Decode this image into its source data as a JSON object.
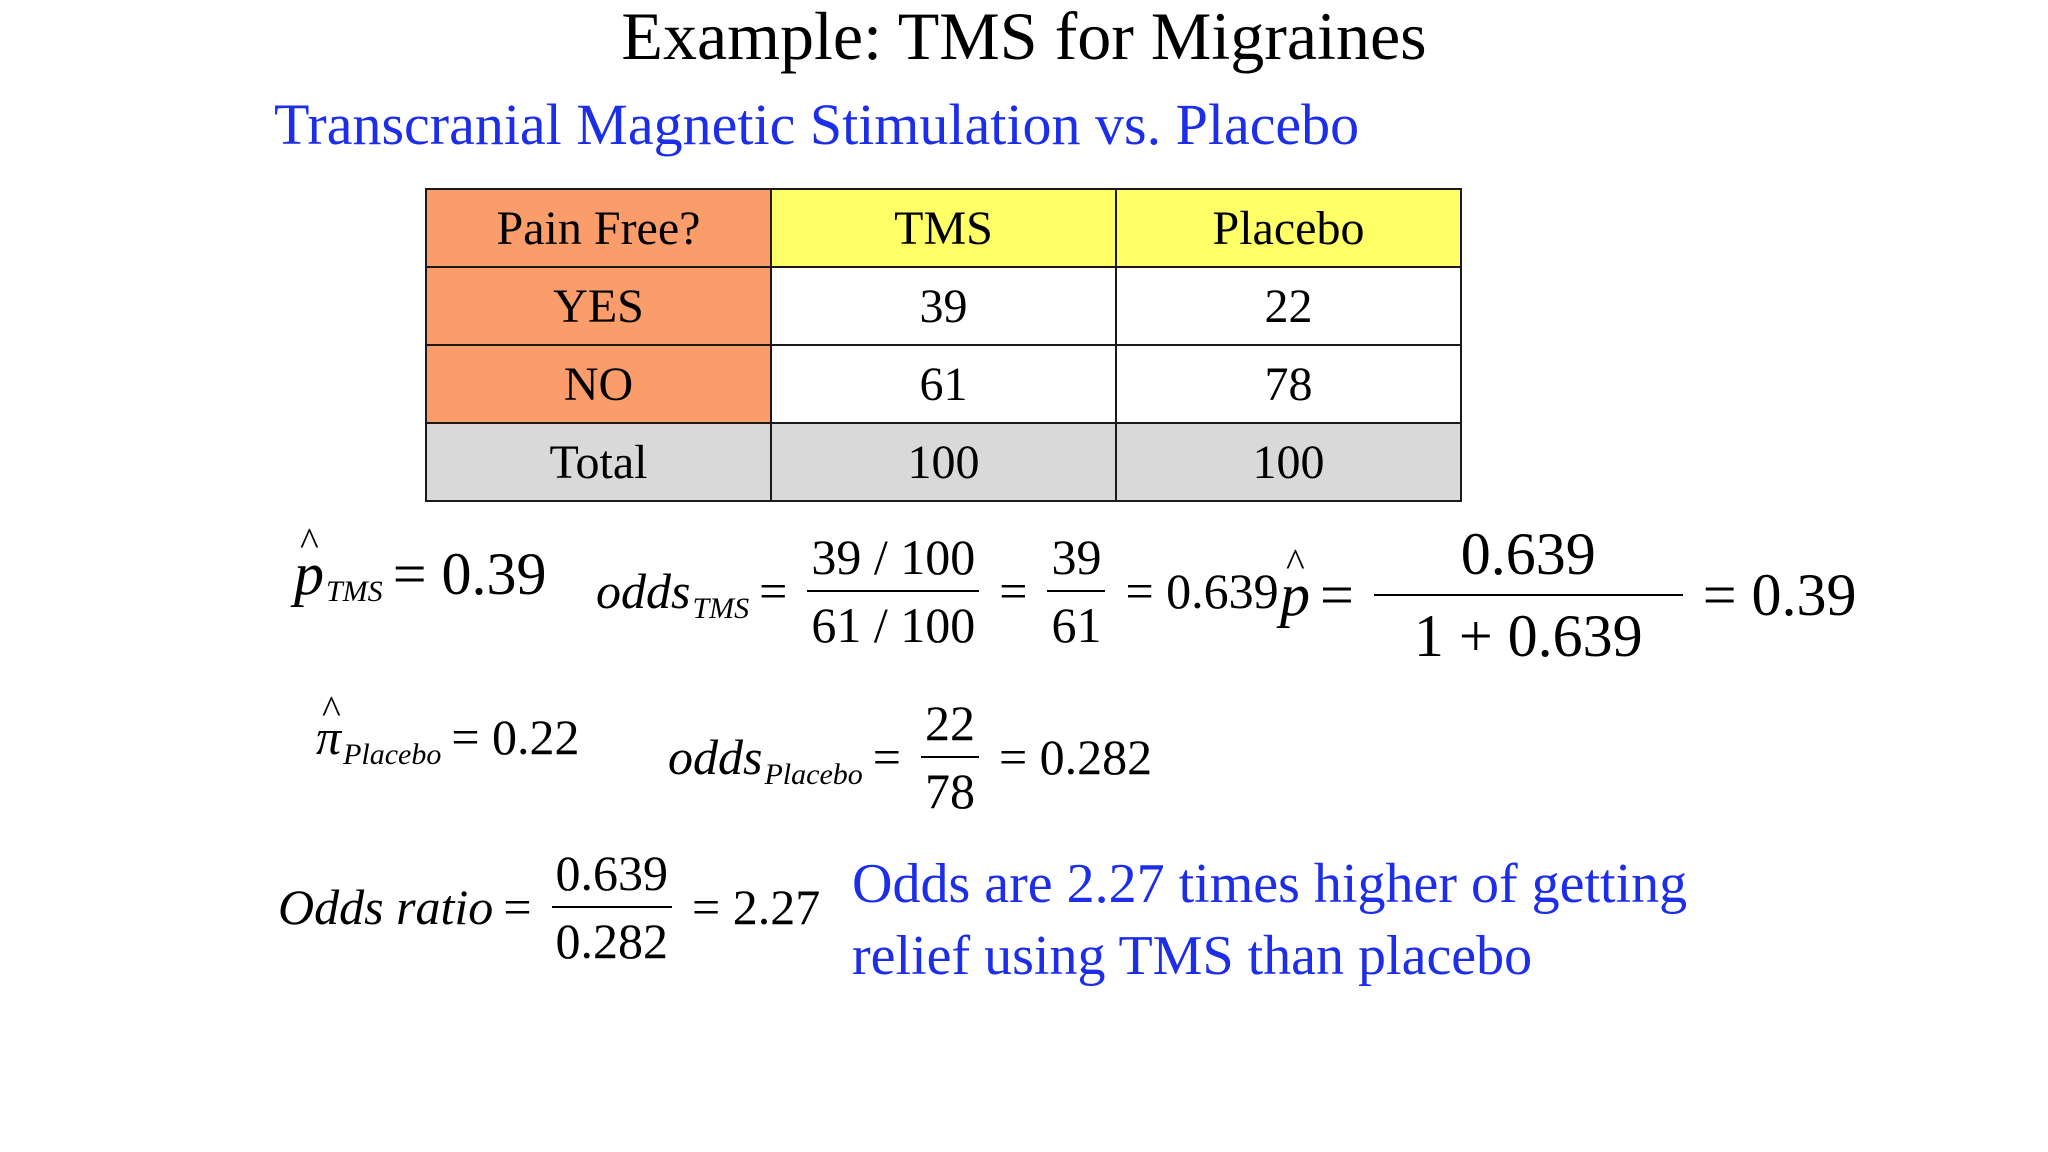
{
  "title": "Example: TMS for Migraines",
  "subtitle": "Transcranial Magnetic Stimulation vs. Placebo",
  "table": {
    "header": [
      "Pain Free?",
      "TMS",
      "Placebo"
    ],
    "rows": [
      [
        "YES",
        "39",
        "22"
      ],
      [
        "NO",
        "61",
        "78"
      ],
      [
        "Total",
        "100",
        "100"
      ]
    ]
  },
  "formulas": {
    "p_tms": {
      "symbol": "p",
      "subscript": "TMS",
      "value": "= 0.39"
    },
    "odds_tms": {
      "label": "odds",
      "subscript": "TMS",
      "frac1_num": "39 / 100",
      "frac1_den": "61 / 100",
      "frac2_num": "39",
      "frac2_den": "61",
      "result": "= 0.639"
    },
    "p_hat": {
      "symbol": "p",
      "num": "0.639",
      "den": "1 + 0.639",
      "result": "= 0.39"
    },
    "pi_placebo": {
      "symbol": "π",
      "subscript": "Placebo",
      "value": "= 0.22"
    },
    "odds_placebo": {
      "label": "odds",
      "subscript": "Placebo",
      "num": "22",
      "den": "78",
      "result": "= 0.282"
    },
    "odds_ratio": {
      "label": "Odds ratio",
      "num": "0.639",
      "den": "0.282",
      "result": "= 2.27"
    }
  },
  "conclusion": {
    "line1": "Odds are 2.27 times higher of getting",
    "line2": "relief using TMS than placebo"
  },
  "colors": {
    "blue_text": "#1c2ee8",
    "header_orange": "#fb9d6b",
    "header_yellow": "#ffff66",
    "total_gray": "#d9d9d9"
  }
}
